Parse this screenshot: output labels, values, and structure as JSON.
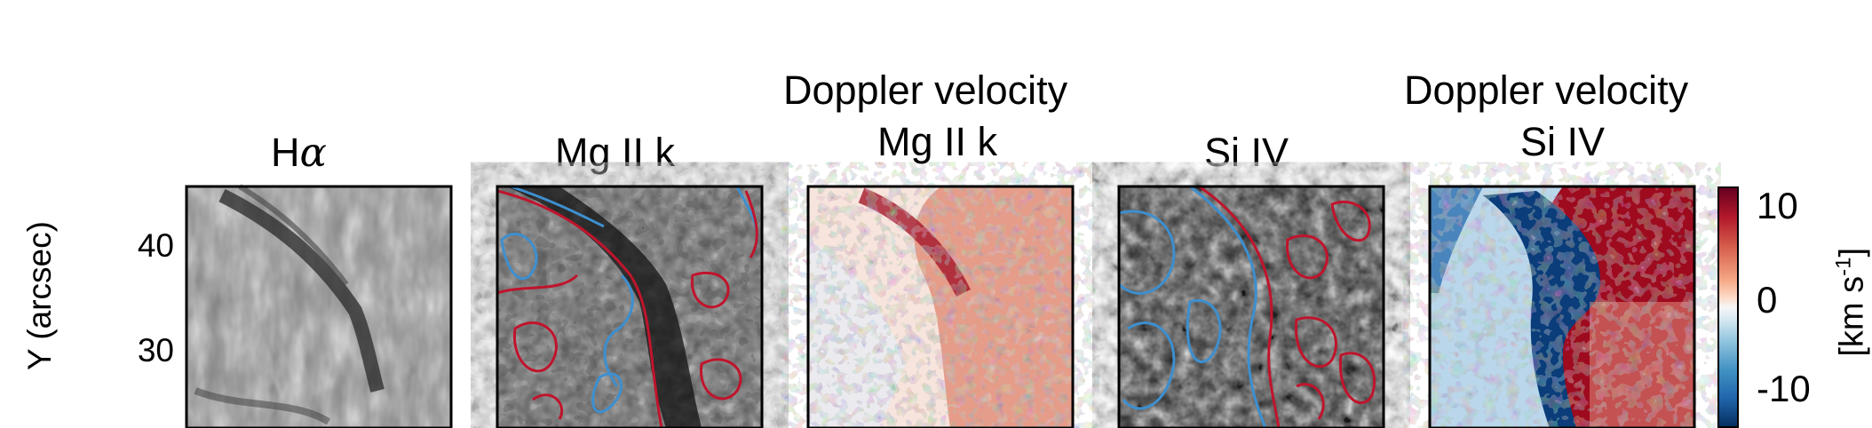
{
  "figure": {
    "panels": [
      {
        "title_lines": [
          "H",
          "α"
        ],
        "type": "intensity"
      },
      {
        "title_lines": [
          "Mg II k"
        ],
        "type": "intensity-contour"
      },
      {
        "title_lines": [
          "Doppler velocity",
          "Mg II k"
        ],
        "type": "doppler"
      },
      {
        "title_lines": [
          "Si IV"
        ],
        "type": "intensity-contour"
      },
      {
        "title_lines": [
          "Doppler velocity",
          "Si IV"
        ],
        "type": "doppler-strong"
      }
    ],
    "y_axis": {
      "label": "Y (arcsec)",
      "ticks": [
        "40",
        "30"
      ]
    },
    "colorbar": {
      "ticks": [
        "10",
        "0",
        "-10"
      ],
      "unit_text": "[km s",
      "unit_sup": "-1",
      "unit_close": "]"
    },
    "colors": {
      "red_contour": "#c0142c",
      "blue_contour": "#3d8fcf",
      "red_strong": "#9e0b1f",
      "blue_strong": "#0a3d7a"
    }
  }
}
